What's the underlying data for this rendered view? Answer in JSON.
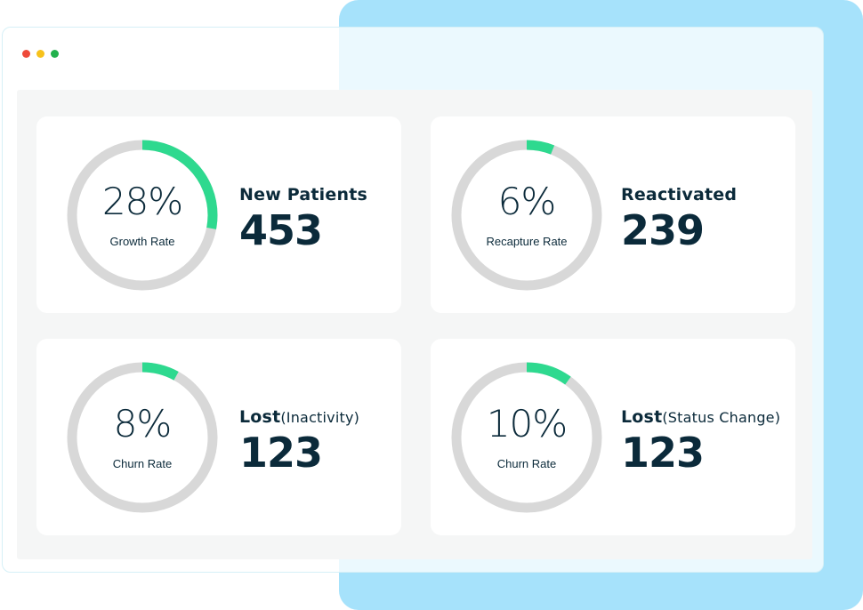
{
  "window": {
    "controls": [
      "close-dot",
      "minimize-dot",
      "maximize-dot"
    ]
  },
  "colors": {
    "accent": "#2ed98f",
    "track": "#d8d8d8",
    "text": "#0b2a3a",
    "backdrop": "#a6e2fb"
  },
  "metrics": [
    {
      "percent_label": "28%",
      "percent": 28,
      "sub": "Growth Rate",
      "label": "New Patients",
      "qualifier": "",
      "value": "453"
    },
    {
      "percent_label": "6%",
      "percent": 6,
      "sub": "Recapture Rate",
      "label": "Reactivated",
      "qualifier": "",
      "value": "239"
    },
    {
      "percent_label": "8%",
      "percent": 8,
      "sub": "Churn Rate",
      "label": "Lost",
      "qualifier": "(Inactivity)",
      "value": "123"
    },
    {
      "percent_label": "10%",
      "percent": 10,
      "sub": "Churn Rate",
      "label": "Lost",
      "qualifier": "(Status Change)",
      "value": "123"
    }
  ]
}
